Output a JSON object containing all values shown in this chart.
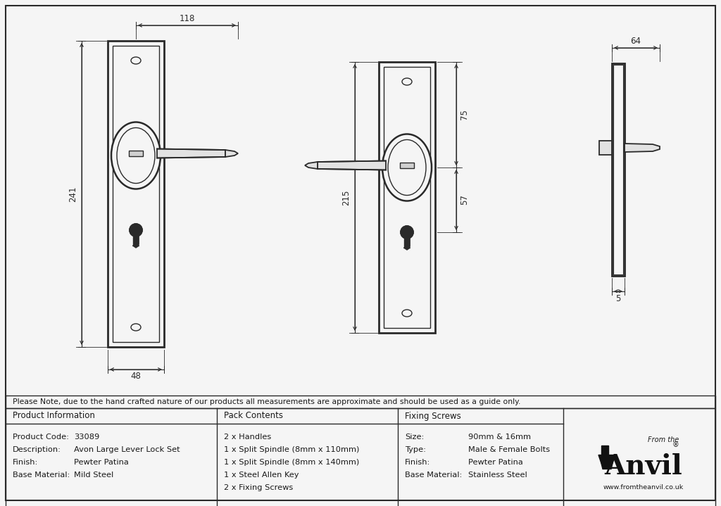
{
  "title": "Pewter Large Avon Lever Lock Set - 33089 - Technical Drawing",
  "bg_color": "#f5f5f5",
  "line_color": "#2a2a2a",
  "dim_color": "#2a2a2a",
  "note_text": "Please Note, due to the hand crafted nature of our products all measurements are approximate and should be used as a guide only.",
  "product_info": {
    "header": "Product Information",
    "rows": [
      [
        "Product Code:",
        "33089"
      ],
      [
        "Description:",
        "Avon Large Lever Lock Set"
      ],
      [
        "Finish:",
        "Pewter Patina"
      ],
      [
        "Base Material:",
        "Mild Steel"
      ]
    ]
  },
  "pack_contents": {
    "header": "Pack Contents",
    "rows": [
      "2 x Handles",
      "1 x Split Spindle (8mm x 110mm)",
      "1 x Split Spindle (8mm x 140mm)",
      "1 x Steel Allen Key",
      "2 x Fixing Screws"
    ]
  },
  "fixing_screws": {
    "header": "Fixing Screws",
    "rows": [
      [
        "Size:",
        "90mm & 16mm"
      ],
      [
        "Type:",
        "Male & Female Bolts"
      ],
      [
        "Finish:",
        "Pewter Patina"
      ],
      [
        "Base Material:",
        "Stainless Steel"
      ]
    ]
  }
}
